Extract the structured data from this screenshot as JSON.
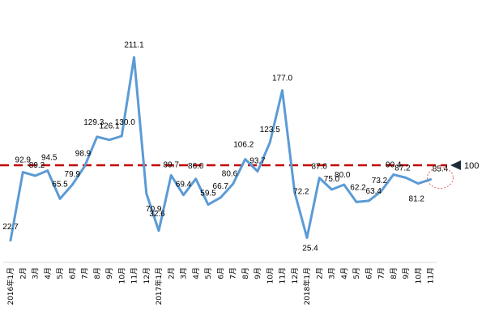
{
  "chart_data": {
    "type": "line",
    "title": "",
    "xlabel": "",
    "ylabel": "",
    "ylim": [
      0,
      230
    ],
    "grid": false,
    "categories": [
      "2016年1月",
      "2月",
      "3月",
      "4月",
      "5月",
      "6月",
      "7月",
      "8月",
      "9月",
      "10月",
      "11月",
      "12月",
      "2017年1月",
      "2月",
      "3月",
      "4月",
      "5月",
      "6月",
      "7月",
      "8月",
      "9月",
      "10月",
      "11月",
      "12月",
      "2018年1月",
      "2月",
      "3月",
      "4月",
      "5月",
      "6月",
      "7月",
      "8月",
      "9月",
      "10月",
      "11月"
    ],
    "series": [
      {
        "values": [
          22.7,
          92.9,
          89.2,
          94.5,
          65.5,
          79.9,
          98.9,
          129.3,
          126.1,
          130.0,
          211.1,
          70.9,
          32.6,
          89.7,
          69.4,
          86.0,
          59.5,
          66.7,
          80.6,
          106.2,
          93.7,
          123.5,
          177.0,
          72.2,
          25.4,
          87.0,
          75.0,
          80.0,
          62.2,
          63.4,
          73.2,
          90.4,
          87.2,
          81.2,
          85.4
        ],
        "labels": [
          "22.7",
          "92.9",
          "89.2",
          "94.5",
          "65.5",
          "79.9",
          "98.9",
          "129.3",
          "126.1",
          "130.0",
          "211.1",
          "70.9",
          "32.6",
          "89.7",
          "69.4",
          "86.0",
          "59.5",
          "66.7",
          "80.6",
          "106.2",
          "93.7",
          "123.5",
          "177.0",
          "72.2",
          "25.4",
          "87.0",
          "75.0",
          "80.0",
          "62.2",
          "63.4",
          "73.2",
          "90.4",
          "87.2",
          "81.2",
          "85.4"
        ],
        "color": "#5b9bd5"
      }
    ],
    "reference_line": {
      "value": 100,
      "label": "100",
      "color": "#c00000"
    },
    "highlight_color": "#e06666"
  }
}
